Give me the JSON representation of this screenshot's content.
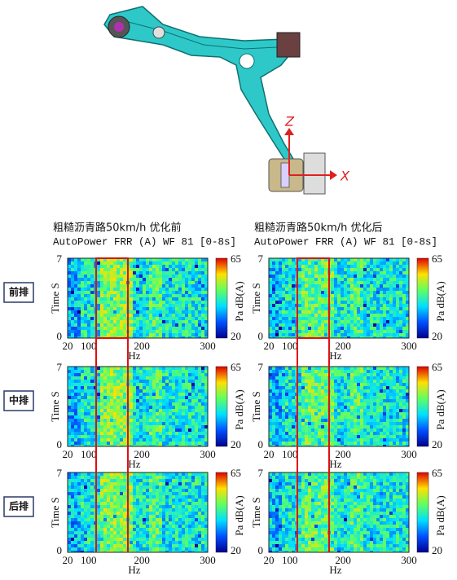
{
  "columns": [
    {
      "title": "粗糙沥青路50km/h 优化前",
      "subtitle": "AutoPower FRR (A) WF 81 [0-8s]"
    },
    {
      "title": "粗糙沥青路50km/h 优化后",
      "subtitle": "AutoPower FRR (A) WF 81 [0-8s]"
    }
  ],
  "rows": [
    {
      "label": "前排"
    },
    {
      "label": "中排"
    },
    {
      "label": "后排"
    }
  ],
  "axes": {
    "x_label": "Hz",
    "y_label": "Time S",
    "colorbar_label": "Pa dB(A)",
    "xticks": [
      "20",
      "100",
      "200",
      "300"
    ],
    "yticks": [
      "0",
      "7"
    ],
    "colorbar_ticks": [
      "65",
      "20"
    ]
  },
  "annotations": {
    "z_axis": "Z",
    "x_axis": "X"
  }
}
